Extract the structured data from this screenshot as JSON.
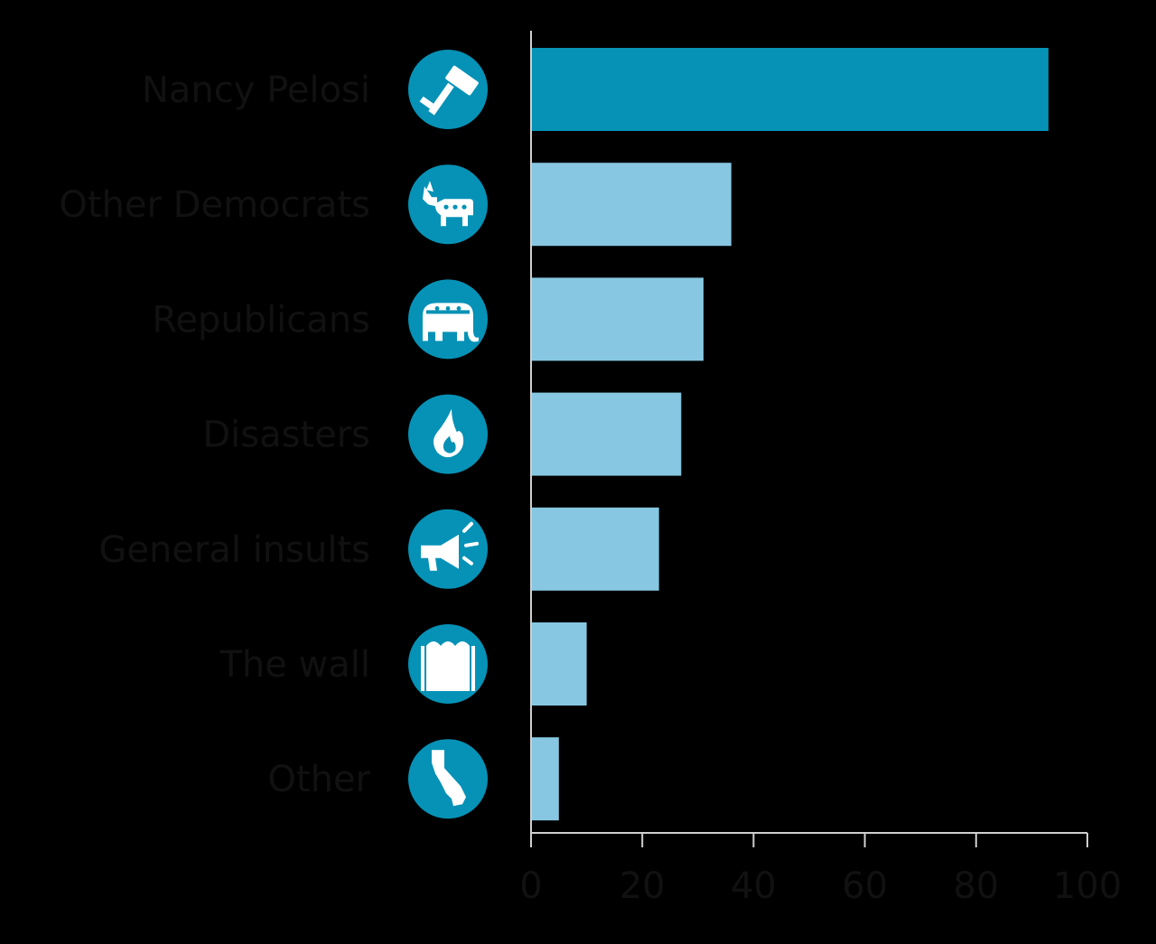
{
  "chart_data": {
    "type": "bar",
    "orientation": "horizontal",
    "categories": [
      "Nancy Pelosi",
      "Other Democrats",
      "Republicans",
      "Disasters",
      "General insults",
      "The wall",
      "Other"
    ],
    "values": [
      93,
      36,
      31,
      27,
      23,
      10,
      5
    ],
    "icons": [
      "gavel-icon",
      "donkey-icon",
      "elephant-icon",
      "flame-icon",
      "megaphone-icon",
      "fence-icon",
      "california-icon"
    ],
    "highlight_index": 0,
    "xlim": [
      0,
      100
    ],
    "xticks": [
      0,
      20,
      40,
      60,
      80,
      100
    ],
    "title": "",
    "xlabel": "",
    "ylabel": "",
    "grid": false,
    "colors": {
      "highlight_bar": "#0592b6",
      "bar": "#87c7e1",
      "icon_circle": "#0592b6",
      "icon_glyph": "#ffffff",
      "axis": "#cfcfcf",
      "text": "#111111"
    }
  }
}
